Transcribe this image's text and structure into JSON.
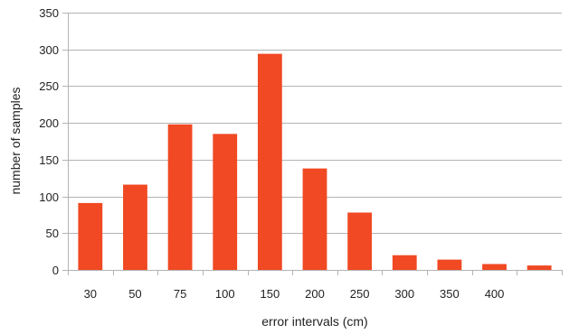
{
  "chart_data": {
    "type": "bar",
    "title": "",
    "xlabel": "error intervals (cm)",
    "ylabel": "number of samples",
    "categories": [
      "30",
      "50",
      "75",
      "100",
      "150",
      "200",
      "250",
      "300",
      "350",
      "400",
      ""
    ],
    "values": [
      91,
      116,
      198,
      185,
      294,
      138,
      78,
      20,
      14,
      8,
      6
    ],
    "ylim": [
      0,
      350
    ],
    "yticks": [
      0,
      50,
      100,
      150,
      200,
      250,
      300,
      350
    ],
    "grid": true,
    "legend": "none",
    "bar_color": "#f04923"
  }
}
